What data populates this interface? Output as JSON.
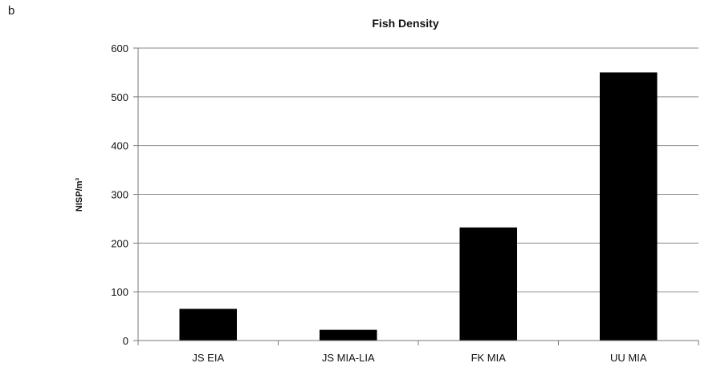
{
  "panel_label": "b",
  "chart_data": {
    "type": "bar",
    "title": "Fish Density",
    "xlabel": "",
    "ylabel": "NISP/m³",
    "categories": [
      "JS EIA",
      "JS MIA-LIA",
      "FK MIA",
      "UU MIA"
    ],
    "values": [
      65,
      22,
      232,
      550
    ],
    "ylim": [
      0,
      600
    ],
    "yticks": [
      0,
      100,
      200,
      300,
      400,
      500,
      600
    ],
    "grid": true,
    "legend": "none",
    "bar_color": "#000000"
  }
}
